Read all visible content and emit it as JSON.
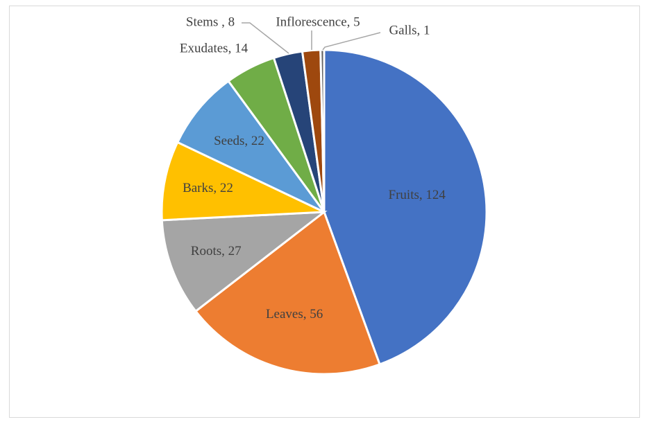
{
  "chart_data": {
    "type": "pie",
    "title": "",
    "categories": [
      "Fruits",
      "Leaves",
      "Roots",
      "Barks",
      "Seeds",
      "Exudates",
      "Stems",
      "Inflorescence",
      "Galls"
    ],
    "values": [
      124,
      56,
      27,
      22,
      22,
      14,
      8,
      5,
      1
    ],
    "colors": [
      "#4472c4",
      "#ed7d31",
      "#a5a5a5",
      "#ffc000",
      "#5b9bd5",
      "#70ad47",
      "#264478",
      "#9e480e",
      "#636363"
    ],
    "labels": [
      "Fruits, 124",
      "Leaves, 56",
      "Roots, 27",
      "Barks, 22",
      "Seeds, 22",
      "Exudates, 14",
      "Stems , 8",
      "Inflorescence, 5",
      "Galls, 1"
    ],
    "legend": "none"
  }
}
